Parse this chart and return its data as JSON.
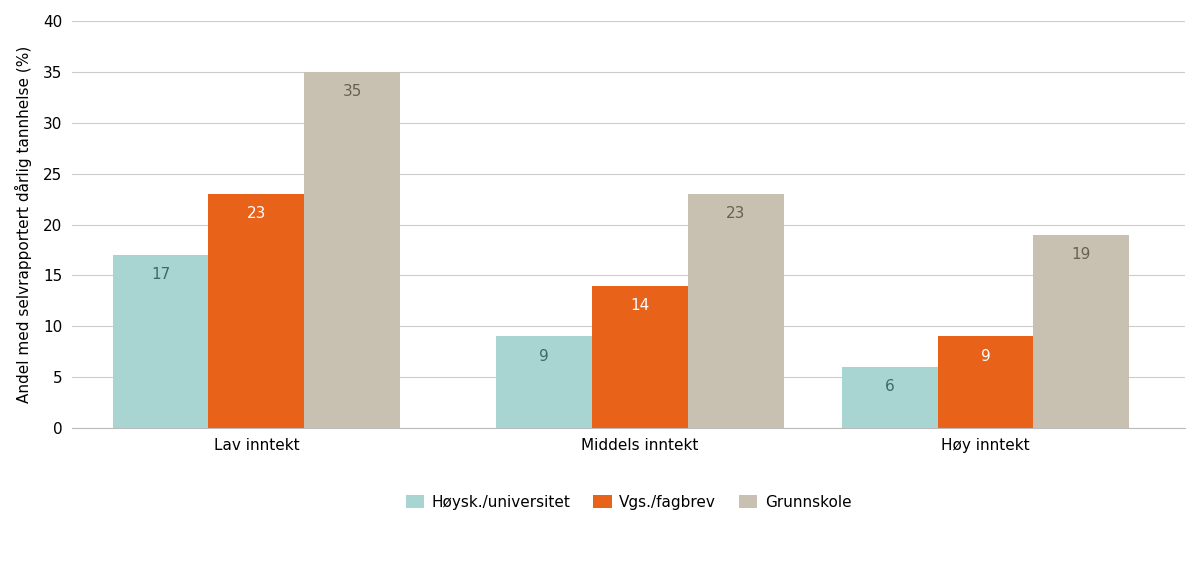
{
  "categories": [
    "Lav inntekt",
    "Middels inntekt",
    "Høy inntekt"
  ],
  "series": {
    "Høysk./universitet": [
      17,
      9,
      6
    ],
    "Vgs./fagbrev": [
      23,
      14,
      9
    ],
    "Grunnskole": [
      35,
      23,
      19
    ]
  },
  "series_order": [
    "Høysk./universitet",
    "Vgs./fagbrev",
    "Grunnskole"
  ],
  "colors": {
    "Høysk./universitet": "#a8d5d1",
    "Vgs./fagbrev": "#e8621a",
    "Grunnskole": "#c8c0b0"
  },
  "bar_label_colors": {
    "Høysk./universitet": "#3a6a6a",
    "Vgs./fagbrev": "#ffffff",
    "Grunnskole": "#6b6050"
  },
  "ylabel": "Andel med selvrapportert dårlig tannhelse (%)",
  "ylim": [
    0,
    40
  ],
  "yticks": [
    0,
    5,
    10,
    15,
    20,
    25,
    30,
    35,
    40
  ],
  "group_centers": [
    0.38,
    1.38,
    2.28
  ],
  "bar_width": 0.25,
  "label_fontsize": 11,
  "tick_fontsize": 11,
  "ylabel_fontsize": 11,
  "legend_fontsize": 11,
  "background_color": "#ffffff",
  "grid_color": "#cccccc"
}
